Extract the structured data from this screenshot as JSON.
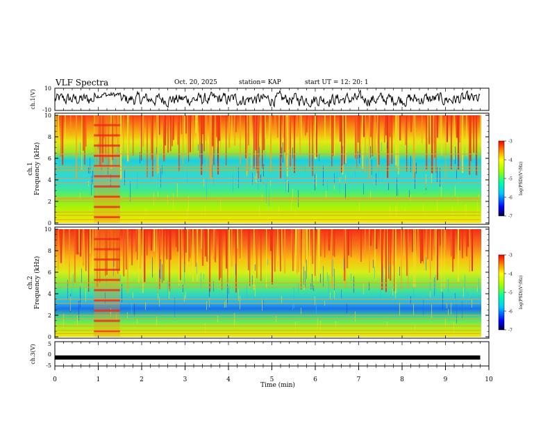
{
  "header": {
    "title": "VLF Spectra",
    "date": "Oct. 20, 2025",
    "station": "station= KAP",
    "start_ut": "start  UT  =   12: 20: 1"
  },
  "chart_data": [
    {
      "type": "line",
      "name": "ch1-waveform",
      "ylabel": "ch.1(V)",
      "ylim": [
        -10,
        10
      ],
      "yticks": [
        "10",
        "-10"
      ],
      "xlim": [
        0,
        9.8
      ],
      "note": "noisy waveform oscillating around 0 V with amplitude about 3-8 V"
    },
    {
      "type": "heatmap",
      "name": "ch1-spectrogram",
      "ylabel_channel": "ch.1",
      "ylabel": "Frequency (kHz)",
      "ylim": [
        0,
        10
      ],
      "yticks": [
        "0",
        "2",
        "4",
        "6",
        "8",
        "10"
      ],
      "xlim": [
        0,
        9.8
      ],
      "colorbar": {
        "ticks": [
          "-3",
          "-4",
          "-5",
          "-6",
          "-7"
        ],
        "label": "log(PSD)(V²/Hz)",
        "range": [
          -7,
          -3
        ]
      },
      "lines_khz": [
        0.3,
        0.7,
        1.0,
        2.0,
        2.2,
        2.3,
        3.7,
        4.1,
        4.9,
        5.2,
        6.4
      ],
      "transient_interval_min": [
        0.9,
        1.5
      ]
    },
    {
      "type": "heatmap",
      "name": "ch2-spectrogram",
      "ylabel_channel": "ch.2",
      "ylabel": "Frequency (kHz)",
      "ylim": [
        0,
        10
      ],
      "yticks": [
        "0",
        "2",
        "4",
        "6",
        "8",
        "10"
      ],
      "xlim": [
        0,
        9.8
      ],
      "colorbar": {
        "ticks": [
          "-3",
          "-4",
          "-5",
          "-6",
          "-7"
        ],
        "label": "log(PSD)(V²/Hz)",
        "range": [
          -7,
          -3
        ]
      },
      "lines_khz": [
        0.3,
        0.6,
        1.0,
        1.7,
        2.0,
        3.1,
        3.5,
        4.6,
        5.0
      ],
      "transient_interval_min": [
        0.9,
        1.5
      ]
    },
    {
      "type": "line",
      "name": "ch3-waveform",
      "ylabel": "ch.3(V)",
      "ylim": [
        -5,
        5
      ],
      "yticks": [
        "5",
        "0",
        "-5"
      ],
      "xlim": [
        0,
        9.8
      ],
      "baseline_v": -1.5,
      "note": "dense flat trace near -1.5 V"
    }
  ],
  "x_axis": {
    "label": "Time (min)",
    "ticks": [
      "0",
      "1",
      "2",
      "3",
      "4",
      "5",
      "6",
      "7",
      "8",
      "9",
      "10"
    ],
    "range": [
      0,
      10
    ]
  }
}
